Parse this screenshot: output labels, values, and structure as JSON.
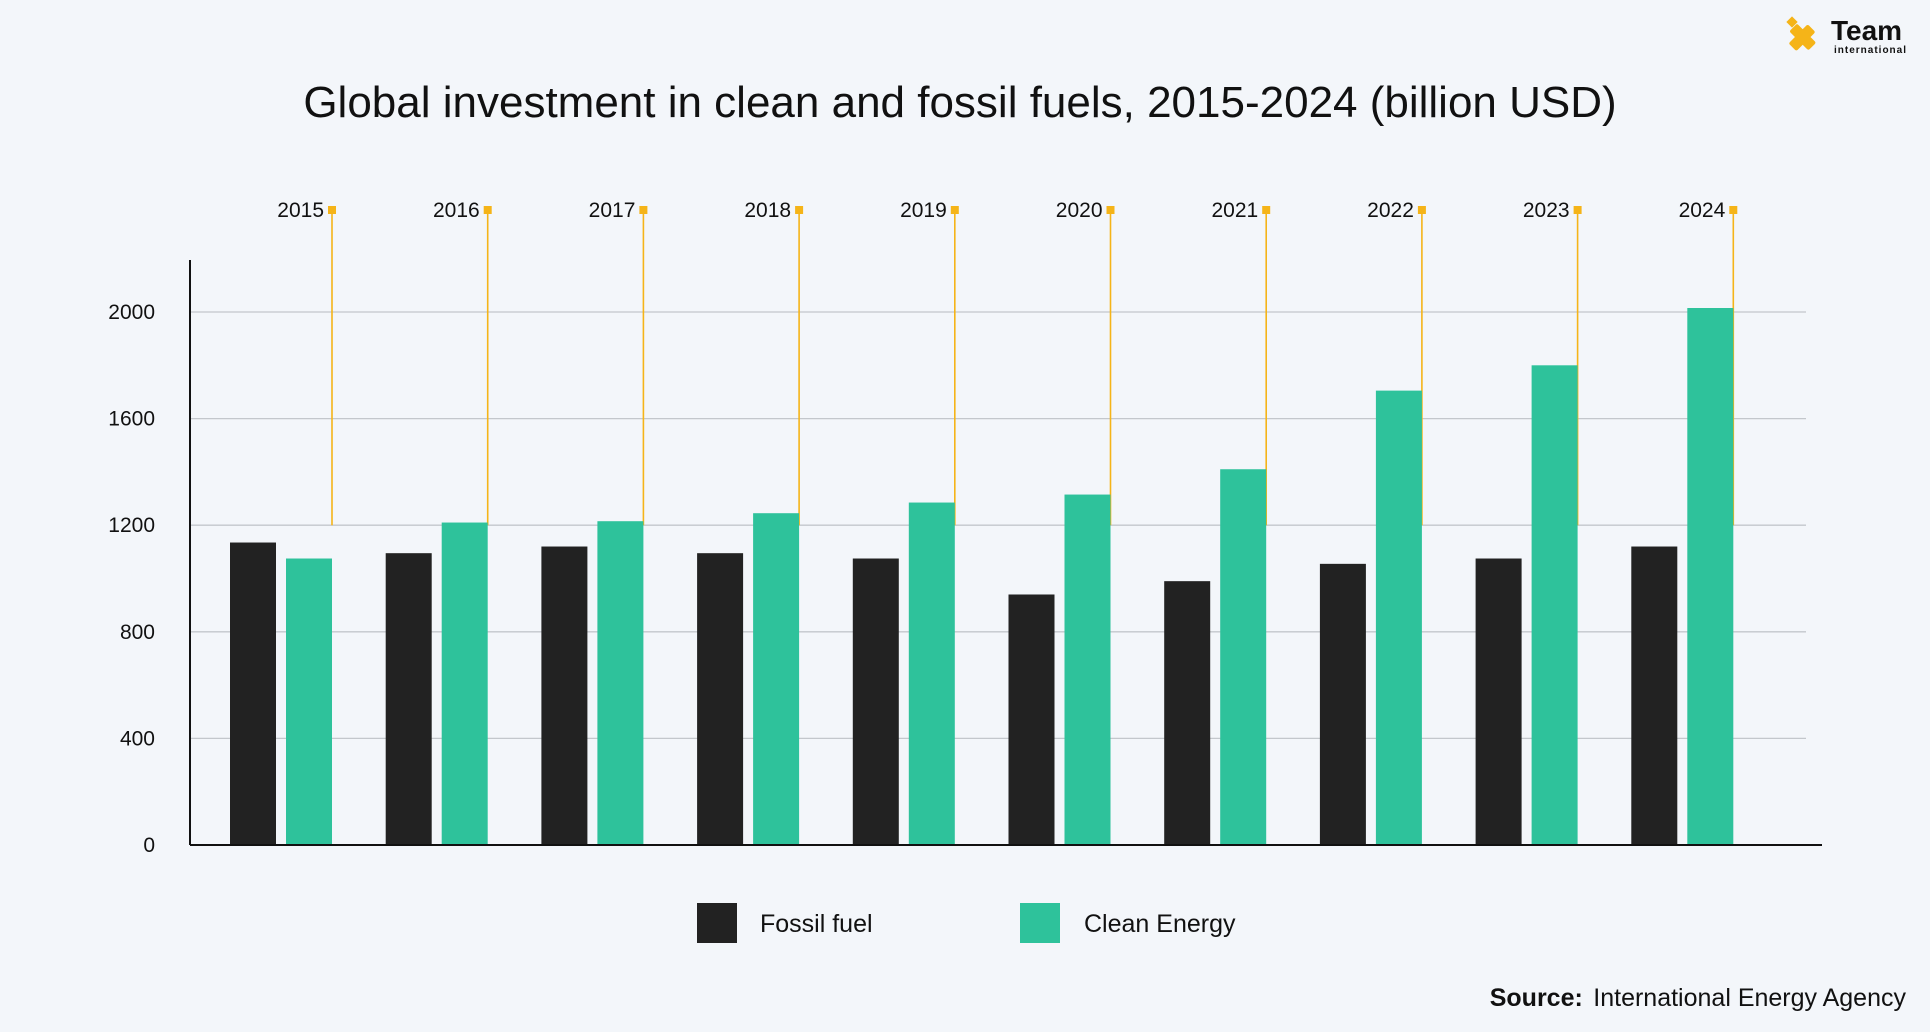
{
  "brand": {
    "name": "Team",
    "sub": "international",
    "accent_color": "#f5b418"
  },
  "source": {
    "label": "Source:",
    "text": "International Energy Agency"
  },
  "colors": {
    "fossil": "#222222",
    "clean": "#2ec29b",
    "marker": "#f5b418",
    "grid": "#c3c7cc",
    "axis": "#111111"
  },
  "chart_data": {
    "type": "bar",
    "title": "Global investment in clean and fossil fuels, 2015-2024 (billion USD)",
    "xlabel": "",
    "ylabel": "",
    "categories": [
      "2015",
      "2016",
      "2017",
      "2018",
      "2019",
      "2020",
      "2021",
      "2022",
      "2023",
      "2024"
    ],
    "series": [
      {
        "name": "Fossil fuel",
        "color": "#222222",
        "values": [
          1135,
          1095,
          1120,
          1095,
          1075,
          940,
          990,
          1055,
          1075,
          1120
        ]
      },
      {
        "name": "Clean Energy",
        "color": "#2ec29b",
        "values": [
          1075,
          1210,
          1215,
          1245,
          1285,
          1315,
          1410,
          1705,
          1800,
          2015
        ]
      }
    ],
    "ylim": [
      0,
      2200
    ],
    "yticks": [
      0,
      400,
      800,
      1200,
      1600,
      2000
    ],
    "ytick_labels": [
      "0",
      "400",
      "800",
      "1200",
      "1600",
      "2000"
    ],
    "grid": true,
    "legend": "bottom-center"
  }
}
